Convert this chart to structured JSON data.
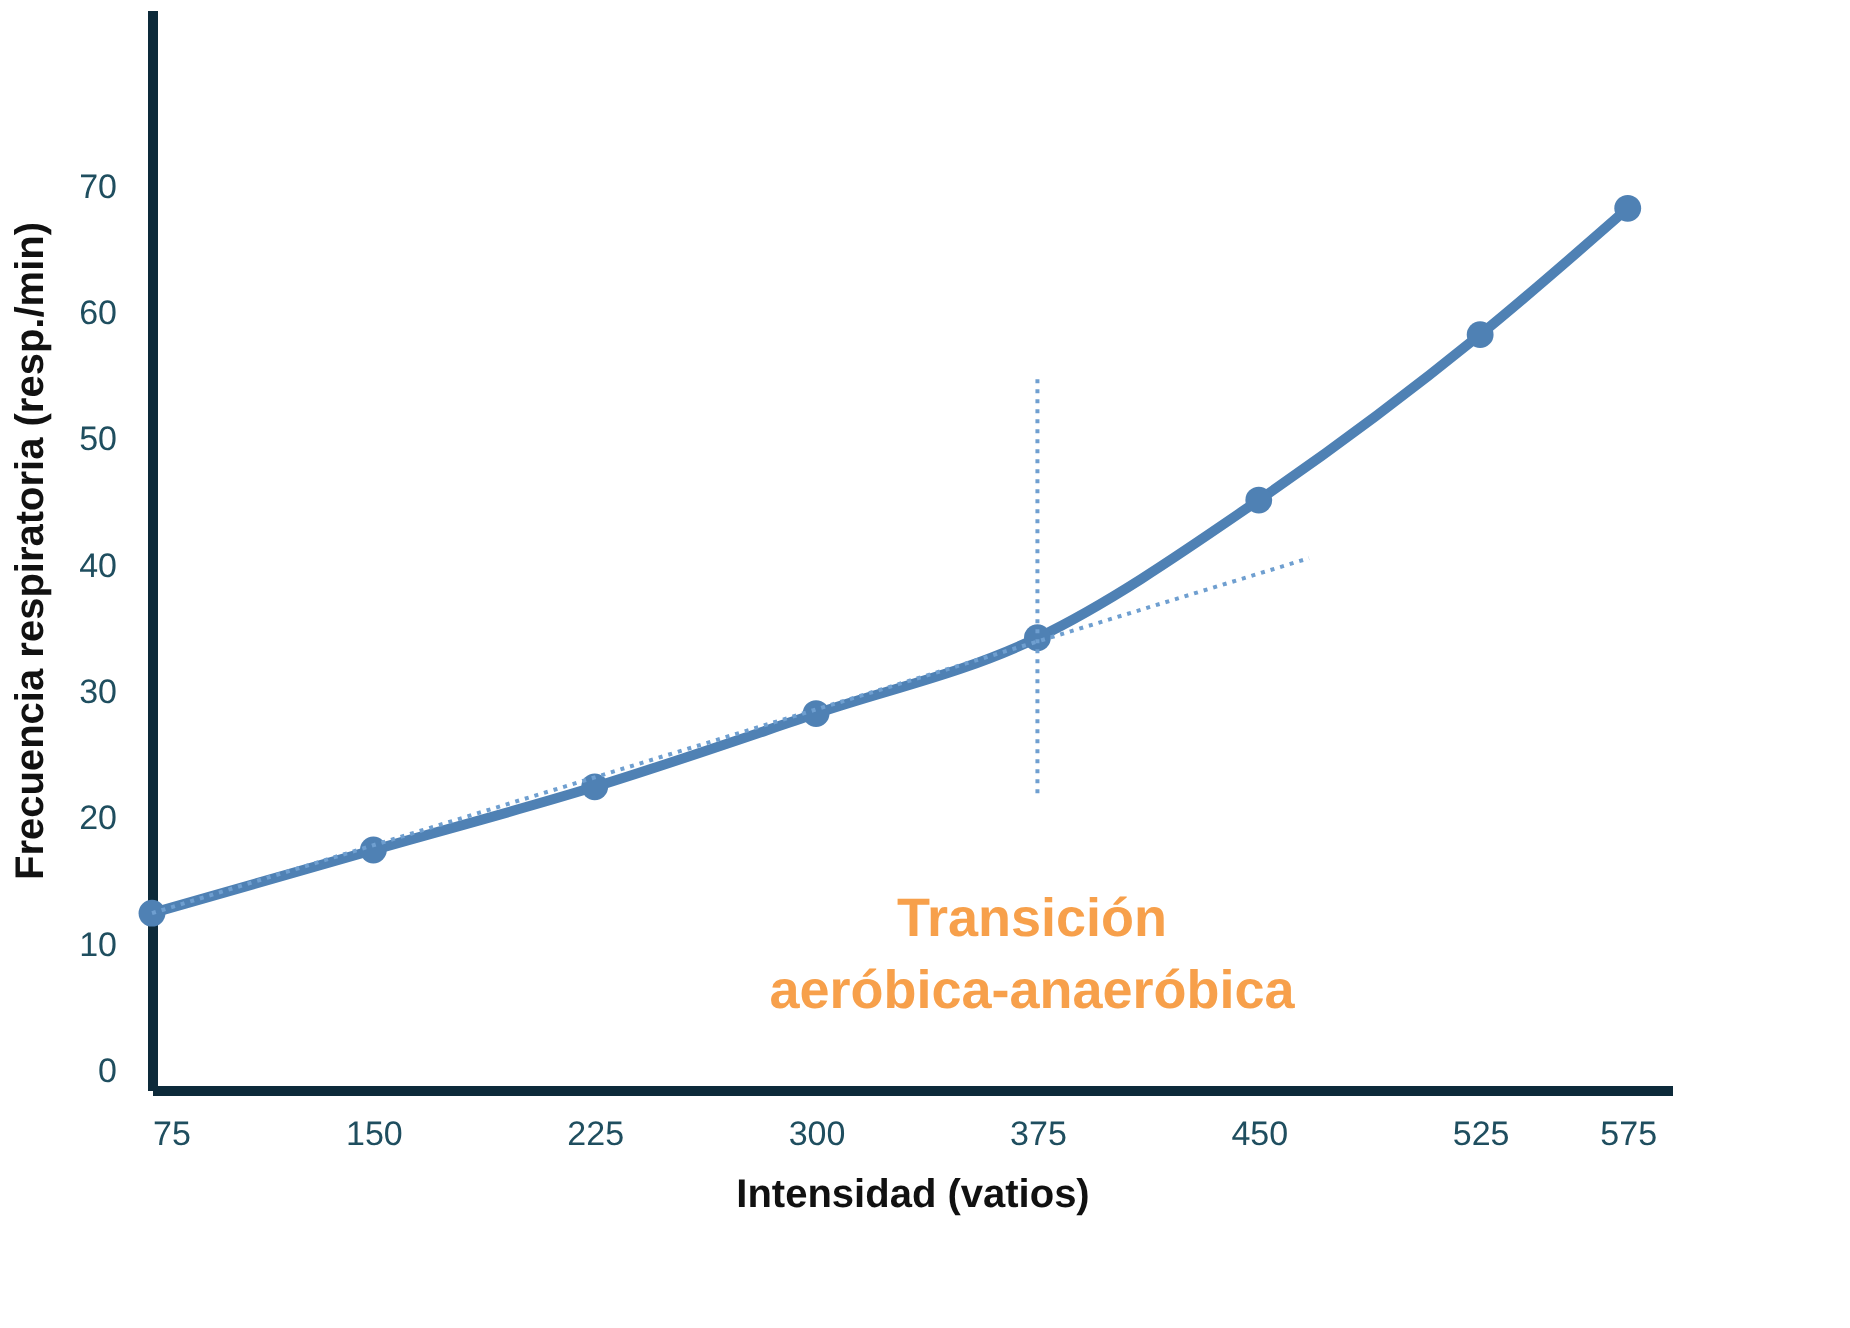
{
  "chart_data": {
    "type": "line",
    "xlabel": "Intensidad (vatios)",
    "ylabel": "Frecuencia respiratoria (resp./min)",
    "x": [
      75,
      150,
      225,
      300,
      375,
      450,
      525,
      575
    ],
    "series": [
      {
        "color": "#4f81b4",
        "marker": "circle",
        "line_style": "solid",
        "values": [
          12.5,
          17.5,
          22.5,
          28.3,
          34.3,
          45.2,
          58.3,
          68.3
        ]
      },
      {
        "color": "#6f9fd0",
        "marker": "none",
        "line_style": "dotted",
        "x": [
          75,
          467
        ],
        "values": [
          12.5,
          40.6
        ]
      },
      {
        "color": "#6f9fd0",
        "marker": "none",
        "line_style": "dotted",
        "x": [
          375,
          375
        ],
        "values": [
          22,
          55
        ]
      }
    ],
    "annotations": [
      "Transición\naeróbica-anaeróbica"
    ],
    "xlim": [
      75,
      590
    ],
    "xticks": [
      75,
      150,
      225,
      300,
      375,
      450,
      525,
      575
    ],
    "ylim": [
      -1.5,
      84
    ],
    "yticks": [
      0,
      10,
      20,
      30,
      40,
      50,
      60,
      70
    ],
    "grid": false
  }
}
